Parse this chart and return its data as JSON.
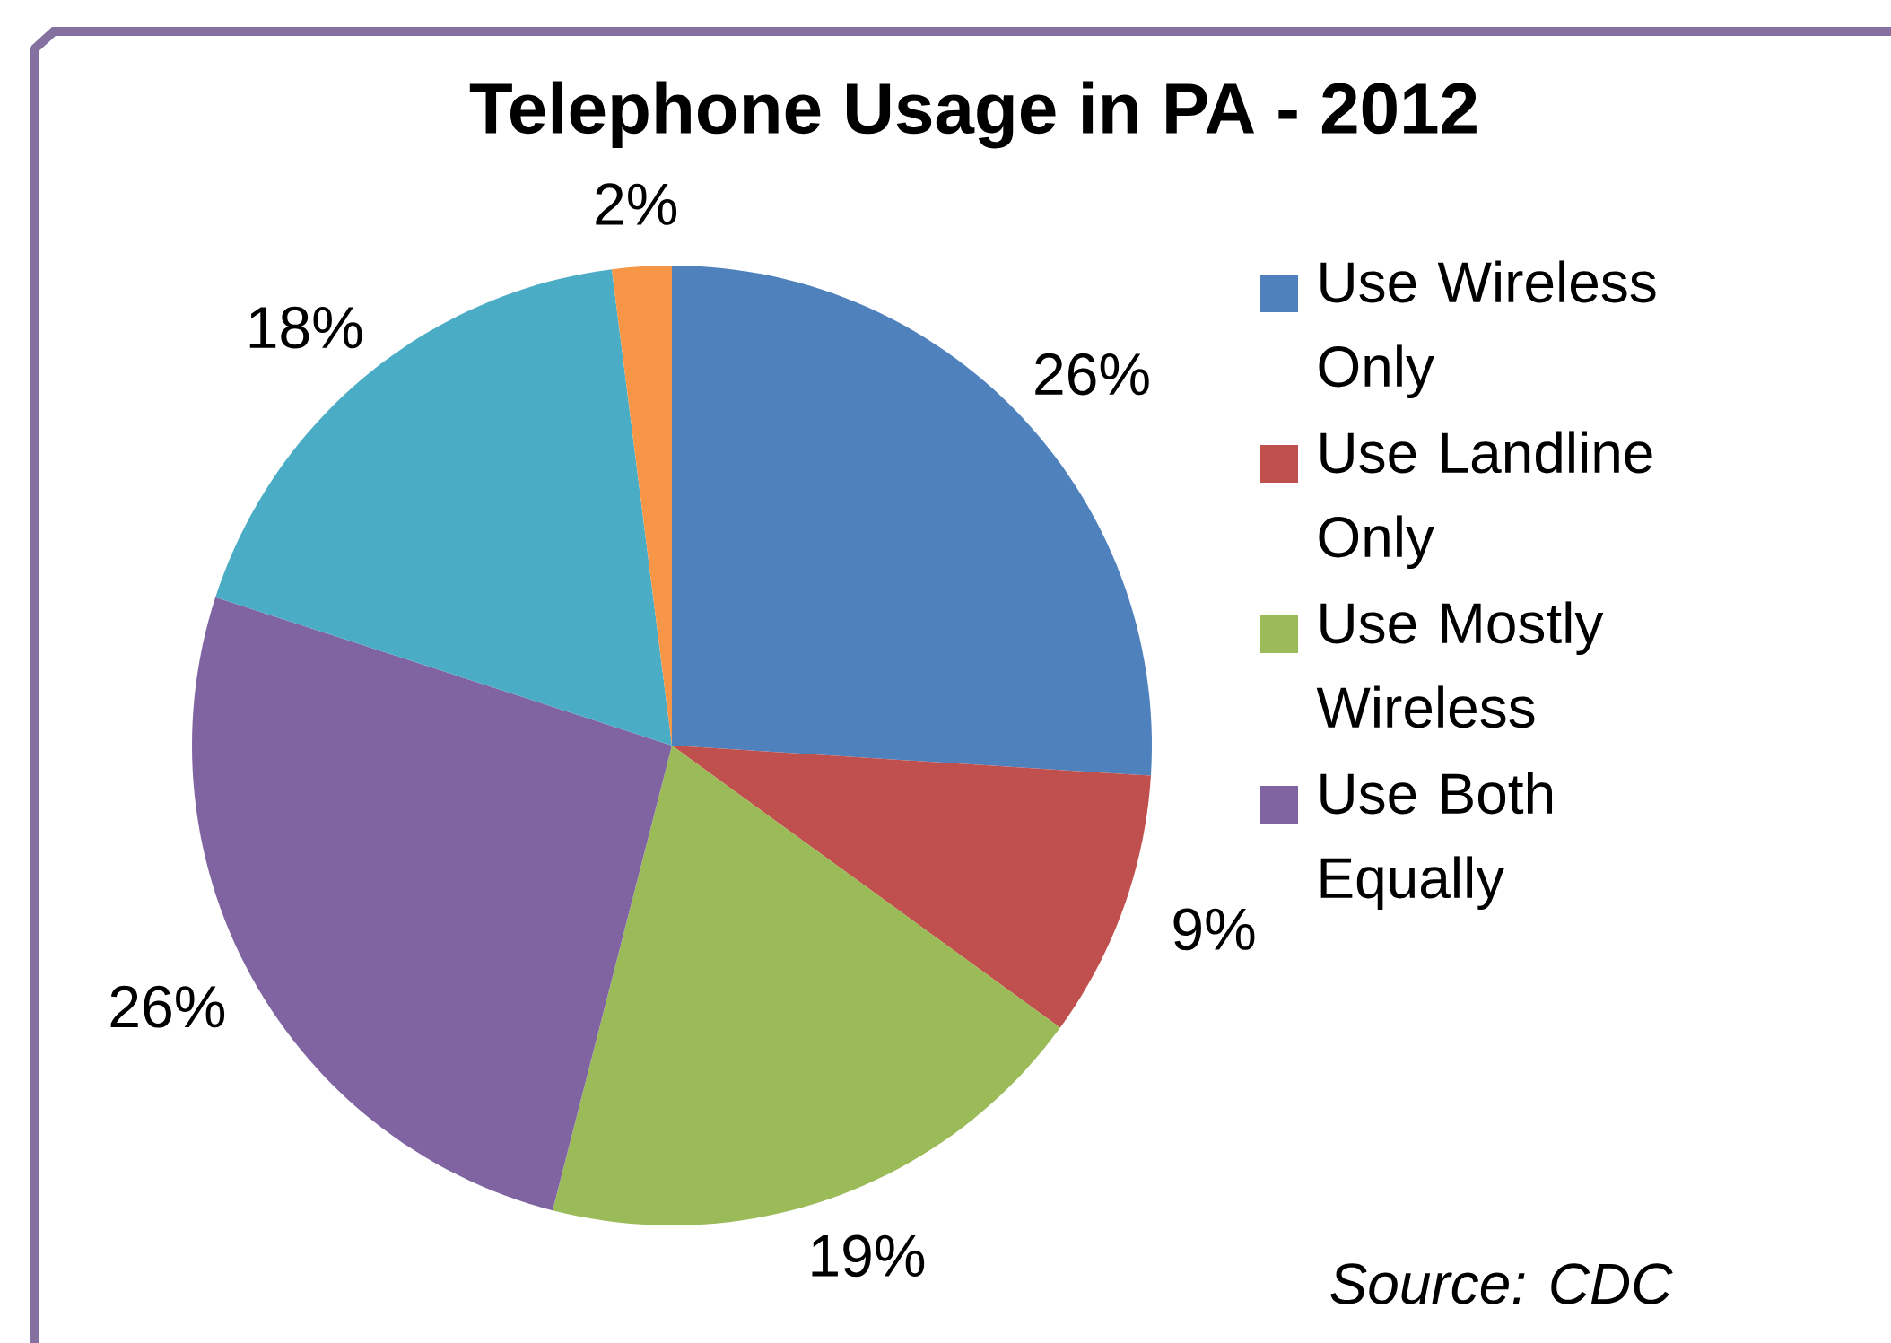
{
  "chart_data": {
    "type": "pie",
    "title": "Telephone Usage in PA - 2012",
    "categories": [
      "Use Wireless Only",
      "Use Landline Only",
      "Use Mostly Wireless",
      "Use Both Equally",
      null,
      null
    ],
    "values": [
      26,
      9,
      19,
      26,
      18,
      2
    ],
    "value_labels": [
      "26%",
      "9%",
      "19%",
      "26%",
      "18%",
      "2%"
    ],
    "colors": [
      "#4f81bd",
      "#c0504d",
      "#9bbb59",
      "#8064a2",
      "#4bacc6",
      "#f79646"
    ],
    "legend": "right",
    "annotations": [
      "Source: CDC"
    ]
  }
}
